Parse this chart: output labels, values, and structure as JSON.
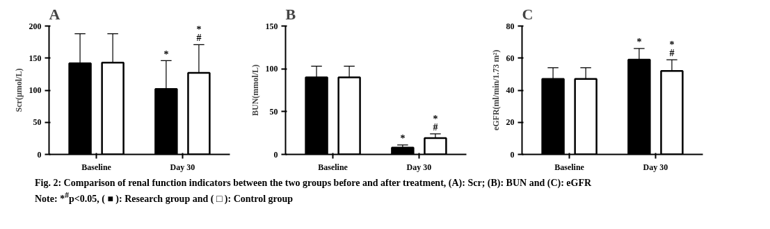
{
  "chart_data": [
    {
      "type": "bar",
      "title": "A",
      "ylabel": "Scr(μmol/L)",
      "categories": [
        "Baseline",
        "Day 30"
      ],
      "ylim": [
        0,
        200
      ],
      "yticks": [
        0,
        50,
        100,
        150,
        200
      ],
      "grid": false,
      "series": [
        {
          "color": "#000000",
          "values": [
            142,
            102
          ],
          "errors": [
            [
              142,
              188
            ],
            [
              102,
              146
            ]
          ]
        },
        {
          "color": "#ffffff",
          "values": [
            143,
            127
          ],
          "errors": [
            [
              143,
              188
            ],
            [
              127,
              171
            ]
          ]
        }
      ],
      "annotations": [
        "*",
        "*\n#",
        "Fig. 2: Comparison of renal function indicators between the two groups before and after treatment, (A): Scr; (B): BUN and (C): eGFR",
        "Note: *$^{#}$p<0.05, ( ■ ): Research group and ( □ ): Control group"
      ]
    },
    {
      "type": "bar",
      "title": "B",
      "ylabel": "BUN(mmol/L)",
      "categories": [
        "Baseline",
        "Day 30"
      ],
      "ylim": [
        0,
        150
      ],
      "yticks": [
        0,
        50,
        100,
        150
      ],
      "grid": false,
      "series": [
        {
          "color": "#000000",
          "values": [
            90,
            8
          ],
          "errors": [
            [
              90,
              103
            ],
            [
              8,
              11
            ]
          ]
        },
        {
          "color": "#ffffff",
          "values": [
            90,
            19
          ],
          "errors": [
            [
              90,
              103
            ],
            [
              19,
              24
            ]
          ]
        }
      ],
      "annotations": [
        "*",
        "*\n#"
      ]
    },
    {
      "type": "bar",
      "title": "C",
      "ylabel": "eGFR(ml/min/1.73 m²)",
      "categories": [
        "Baseline",
        "Day 30"
      ],
      "ylim": [
        0,
        80
      ],
      "yticks": [
        0,
        20,
        40,
        60,
        80
      ],
      "grid": false,
      "series": [
        {
          "color": "#000000",
          "values": [
            47,
            59
          ],
          "errors": [
            [
              47,
              54
            ],
            [
              59,
              66
            ]
          ]
        },
        {
          "color": "#ffffff",
          "values": [
            47,
            52
          ],
          "errors": [
            [
              47,
              54
            ],
            [
              52,
              59
            ]
          ]
        }
      ],
      "annotations": [
        "*",
        "*\n#"
      ]
    }
  ]
}
